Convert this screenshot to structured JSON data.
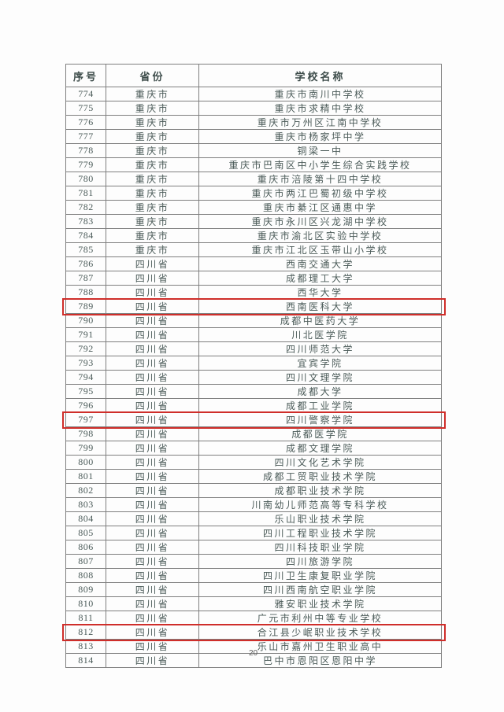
{
  "page_number": "20",
  "colors": {
    "highlight_border": "#cf2e2a",
    "table_border": "#7f7f7f",
    "text": "#4a5a58",
    "background": "#fdfdfd"
  },
  "table": {
    "headers": [
      "序号",
      "省份",
      "学校名称"
    ],
    "rows": [
      {
        "no": "774",
        "province": "重庆市",
        "school": "重庆市南川中学校",
        "highlighted": false
      },
      {
        "no": "775",
        "province": "重庆市",
        "school": "重庆市求精中学校",
        "highlighted": false
      },
      {
        "no": "776",
        "province": "重庆市",
        "school": "重庆市万州区江南中学校",
        "highlighted": false
      },
      {
        "no": "777",
        "province": "重庆市",
        "school": "重庆市杨家坪中学",
        "highlighted": false
      },
      {
        "no": "778",
        "province": "重庆市",
        "school": "铜梁一中",
        "highlighted": false
      },
      {
        "no": "779",
        "province": "重庆市",
        "school": "重庆市巴南区中小学生综合实践学校",
        "highlighted": false
      },
      {
        "no": "780",
        "province": "重庆市",
        "school": "重庆市涪陵第十四中学校",
        "highlighted": false
      },
      {
        "no": "781",
        "province": "重庆市",
        "school": "重庆市两江巴蜀初级中学校",
        "highlighted": false
      },
      {
        "no": "782",
        "province": "重庆市",
        "school": "重庆市綦江区通惠中学",
        "highlighted": false
      },
      {
        "no": "783",
        "province": "重庆市",
        "school": "重庆市永川区兴龙湖中学校",
        "highlighted": false
      },
      {
        "no": "784",
        "province": "重庆市",
        "school": "重庆市渝北区实验中学校",
        "highlighted": false
      },
      {
        "no": "785",
        "province": "重庆市",
        "school": "重庆市江北区玉带山小学校",
        "highlighted": false
      },
      {
        "no": "786",
        "province": "四川省",
        "school": "西南交通大学",
        "highlighted": false
      },
      {
        "no": "787",
        "province": "四川省",
        "school": "成都理工大学",
        "highlighted": false
      },
      {
        "no": "788",
        "province": "四川省",
        "school": "西华大学",
        "highlighted": false
      },
      {
        "no": "789",
        "province": "四川省",
        "school": "西南医科大学",
        "highlighted": true
      },
      {
        "no": "790",
        "province": "四川省",
        "school": "成都中医药大学",
        "highlighted": false
      },
      {
        "no": "791",
        "province": "四川省",
        "school": "川北医学院",
        "highlighted": false
      },
      {
        "no": "792",
        "province": "四川省",
        "school": "四川师范大学",
        "highlighted": false
      },
      {
        "no": "793",
        "province": "四川省",
        "school": "宜宾学院",
        "highlighted": false
      },
      {
        "no": "794",
        "province": "四川省",
        "school": "四川文理学院",
        "highlighted": false
      },
      {
        "no": "795",
        "province": "四川省",
        "school": "成都大学",
        "highlighted": false
      },
      {
        "no": "796",
        "province": "四川省",
        "school": "成都工业学院",
        "highlighted": false
      },
      {
        "no": "797",
        "province": "四川省",
        "school": "四川警察学院",
        "highlighted": true
      },
      {
        "no": "798",
        "province": "四川省",
        "school": "成都医学院",
        "highlighted": false
      },
      {
        "no": "799",
        "province": "四川省",
        "school": "成都文理学院",
        "highlighted": false
      },
      {
        "no": "800",
        "province": "四川省",
        "school": "四川文化艺术学院",
        "highlighted": false
      },
      {
        "no": "801",
        "province": "四川省",
        "school": "成都工贸职业技术学院",
        "highlighted": false
      },
      {
        "no": "802",
        "province": "四川省",
        "school": "成都职业技术学院",
        "highlighted": false
      },
      {
        "no": "803",
        "province": "四川省",
        "school": "川南幼儿师范高等专科学校",
        "highlighted": false
      },
      {
        "no": "804",
        "province": "四川省",
        "school": "乐山职业技术学院",
        "highlighted": false
      },
      {
        "no": "805",
        "province": "四川省",
        "school": "四川工程职业技术学院",
        "highlighted": false
      },
      {
        "no": "806",
        "province": "四川省",
        "school": "四川科技职业学院",
        "highlighted": false
      },
      {
        "no": "807",
        "province": "四川省",
        "school": "四川旅游学院",
        "highlighted": false
      },
      {
        "no": "808",
        "province": "四川省",
        "school": "四川卫生康复职业学院",
        "highlighted": false
      },
      {
        "no": "809",
        "province": "四川省",
        "school": "四川西南航空职业学院",
        "highlighted": false
      },
      {
        "no": "810",
        "province": "四川省",
        "school": "雅安职业技术学院",
        "highlighted": false
      },
      {
        "no": "811",
        "province": "四川省",
        "school": "广元市利州中等专业学校",
        "highlighted": false
      },
      {
        "no": "812",
        "province": "四川省",
        "school": "合江县少岷职业技术学校",
        "highlighted": true
      },
      {
        "no": "813",
        "province": "四川省",
        "school": "乐山市嘉州卫生职业高中",
        "highlighted": false
      },
      {
        "no": "814",
        "province": "四川省",
        "school": "巴中市恩阳区恩阳中学",
        "highlighted": false
      }
    ]
  }
}
